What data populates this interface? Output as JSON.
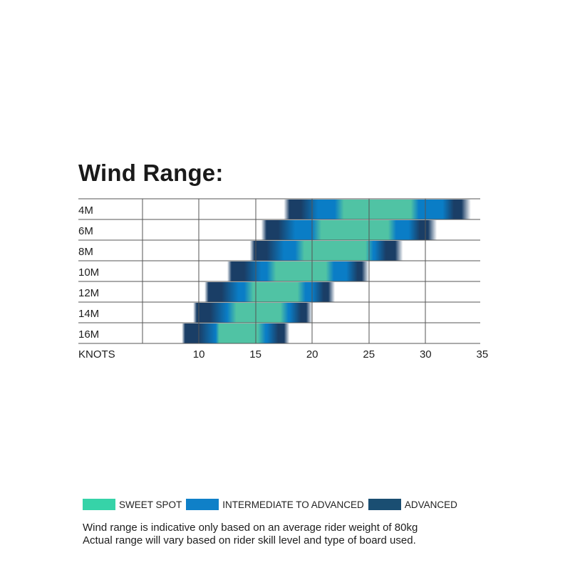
{
  "chart_data": {
    "type": "range-bar",
    "title": "Wind Range:",
    "xlabel": "KNOTS",
    "xlim": [
      0,
      35
    ],
    "x_ticks": [
      10,
      15,
      20,
      25,
      30,
      35
    ],
    "grid": true,
    "rows": [
      {
        "label": "4M",
        "advanced": [
          17.5,
          34
        ],
        "intermediate": [
          18,
          33
        ],
        "sweet_spot": [
          22,
          29
        ]
      },
      {
        "label": "6M",
        "advanced": [
          15.5,
          31
        ],
        "intermediate": [
          16,
          30
        ],
        "sweet_spot": [
          20,
          27
        ]
      },
      {
        "label": "8M",
        "advanced": [
          14.5,
          28
        ],
        "intermediate": [
          15,
          27
        ],
        "sweet_spot": [
          18.5,
          25
        ]
      },
      {
        "label": "10M",
        "advanced": [
          12.5,
          25
        ],
        "intermediate": [
          13,
          24.5
        ],
        "sweet_spot": [
          16,
          21.5
        ]
      },
      {
        "label": "12M",
        "advanced": [
          10.5,
          22
        ],
        "intermediate": [
          11,
          21.5
        ],
        "sweet_spot": [
          14,
          19
        ]
      },
      {
        "label": "14M",
        "advanced": [
          9.5,
          20
        ],
        "intermediate": [
          10,
          19.5
        ],
        "sweet_spot": [
          12.5,
          17.5
        ]
      },
      {
        "label": "16M",
        "advanced": [
          8.5,
          18
        ],
        "intermediate": [
          9,
          17.5
        ],
        "sweet_spot": [
          11,
          15.5
        ]
      }
    ],
    "legend": [
      {
        "label": "SWEET SPOT",
        "color": "#36d3a8"
      },
      {
        "label": "INTERMEDIATE TO ADVANCED",
        "color": "#0f80c8"
      },
      {
        "label": "ADVANCED",
        "color": "#1a4e72"
      }
    ],
    "colors": {
      "sweet_spot": "#50c3a4",
      "intermediate": "#0a7dc6",
      "advanced": "#1a3e66",
      "grid": "#555555"
    }
  },
  "footnote": {
    "line1": "Wind range is indicative only based on an average rider weight of 80kg",
    "line2": "Actual range will vary based on rider skill level and type of board used."
  }
}
